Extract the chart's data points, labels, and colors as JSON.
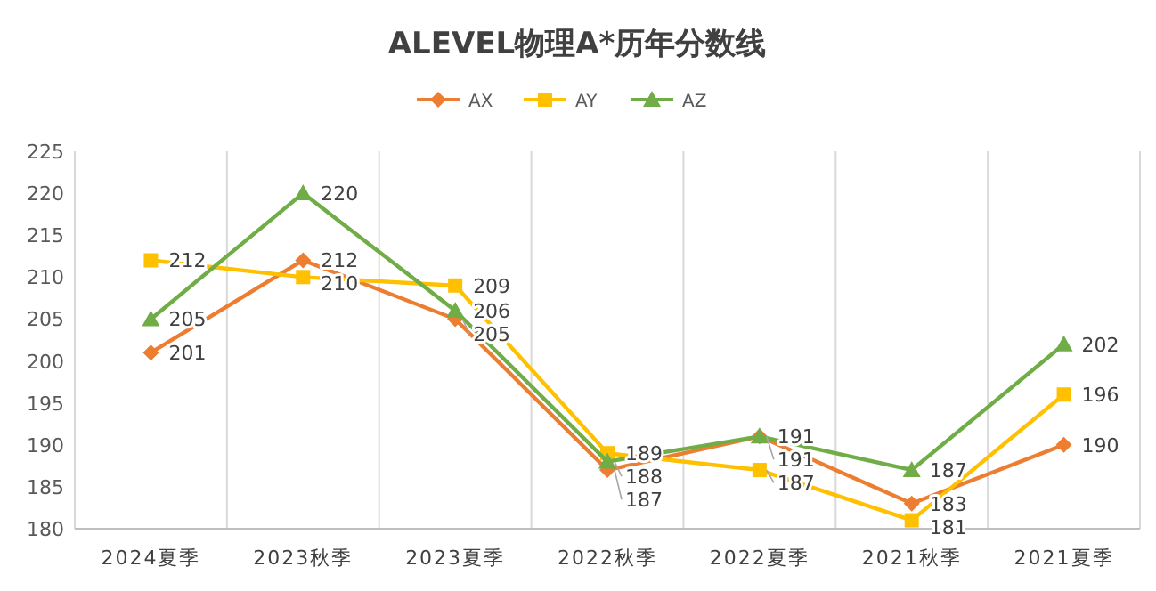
{
  "chart_data": {
    "type": "line",
    "title": "ALEVEL物理A*历年分数线",
    "categories": [
      "2024夏季",
      "2023秋季",
      "2023夏季",
      "2022秋季",
      "2022夏季",
      "2021秋季",
      "2021夏季"
    ],
    "series": [
      {
        "name": "AX",
        "color": "#ed7d31",
        "marker": "diamond",
        "values": [
          201,
          212,
          205,
          187,
          191,
          183,
          190
        ]
      },
      {
        "name": "AY",
        "color": "#ffc000",
        "marker": "square",
        "values": [
          212,
          210,
          209,
          189,
          187,
          181,
          196
        ]
      },
      {
        "name": "AZ",
        "color": "#70ad47",
        "marker": "triangle",
        "values": [
          205,
          220,
          206,
          188,
          191,
          187,
          202
        ]
      }
    ],
    "ylim": [
      180,
      225
    ],
    "yticks": [
      180,
      185,
      190,
      195,
      200,
      205,
      210,
      215,
      220,
      225
    ],
    "grid": "x",
    "legend": "top",
    "data_labels": true
  }
}
